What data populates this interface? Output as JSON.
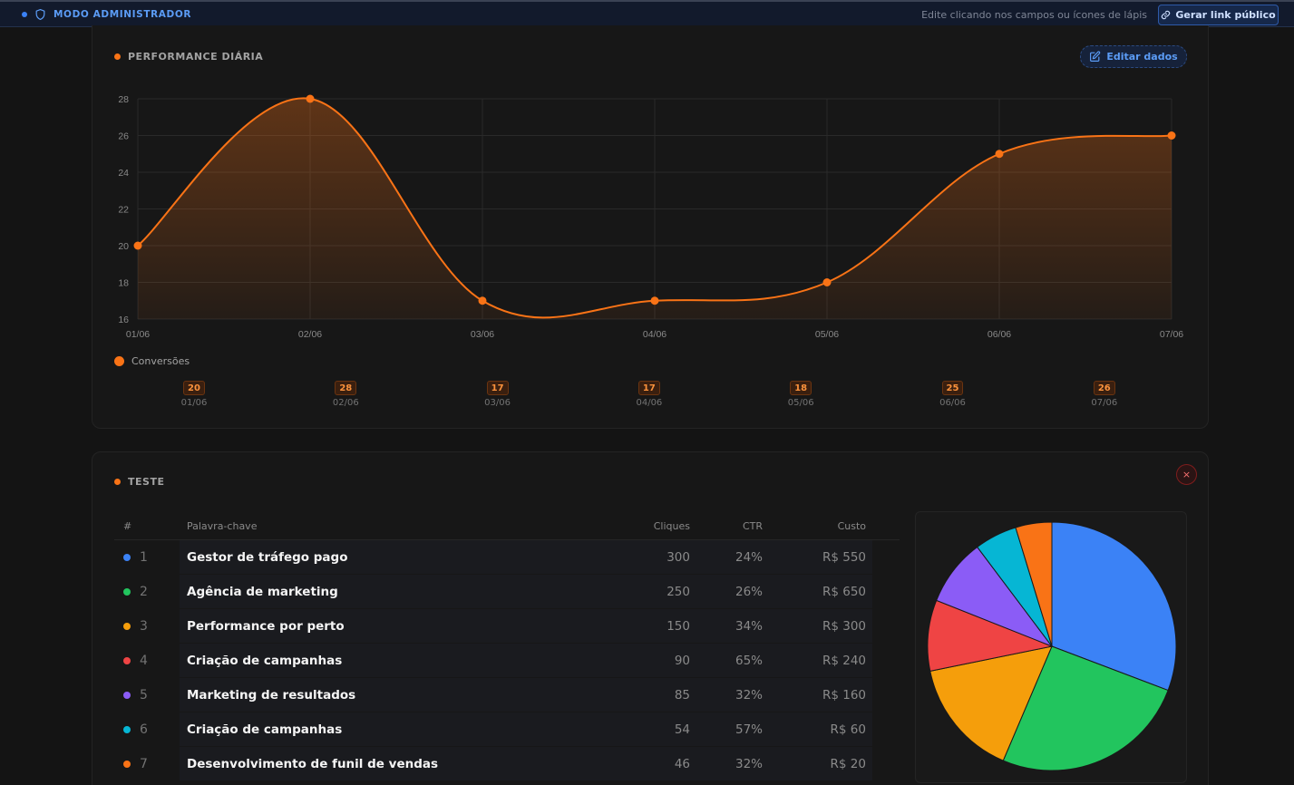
{
  "topbar": {
    "mode_label": "MODO ADMINISTRADOR",
    "hint": "Edite clicando nos campos ou ícones de lápis",
    "link_button": "Gerar link público"
  },
  "performance": {
    "title": "PERFORMANCE DIÁRIA",
    "edit_button": "Editar dados",
    "legend_label": "Conversões",
    "values": [
      {
        "value": "20",
        "date": "01/06"
      },
      {
        "value": "28",
        "date": "02/06"
      },
      {
        "value": "17",
        "date": "03/06"
      },
      {
        "value": "17",
        "date": "04/06"
      },
      {
        "value": "18",
        "date": "05/06"
      },
      {
        "value": "25",
        "date": "06/06"
      },
      {
        "value": "26",
        "date": "07/06"
      }
    ]
  },
  "chart_data": [
    {
      "type": "area",
      "categories": [
        "01/06",
        "02/06",
        "03/06",
        "04/06",
        "05/06",
        "06/06",
        "07/06"
      ],
      "series": [
        {
          "name": "Conversões",
          "values": [
            20,
            28,
            17,
            17,
            18,
            25,
            26
          ],
          "color": "#f97316"
        }
      ],
      "y_ticks": [
        "16",
        "18",
        "20",
        "22",
        "24",
        "26",
        "28"
      ],
      "ylim": [
        16,
        28
      ],
      "grid": true,
      "legend": "bottom-left"
    },
    {
      "type": "pie",
      "categories": [
        "Gestor de tráfego pago",
        "Agência de marketing",
        "Performance por perto",
        "Criação de campanhas",
        "Marketing de resultados",
        "Criação de campanhas",
        "Desenvolvimento de funil de vendas"
      ],
      "values": [
        300,
        250,
        150,
        90,
        85,
        54,
        46
      ],
      "colors": [
        "#3b82f6",
        "#22c55e",
        "#f59e0b",
        "#ef4444",
        "#8b5cf6",
        "#06b6d4",
        "#f97316"
      ]
    }
  ],
  "keywords": {
    "title": "TESTE",
    "close": "×",
    "headers": {
      "num": "#",
      "keyword": "Palavra-chave",
      "clicks": "Cliques",
      "ctr": "CTR",
      "cost": "Custo"
    },
    "rows": [
      {
        "n": "1",
        "keyword": "Gestor de tráfego pago",
        "clicks": "300",
        "ctr": "24%",
        "cost": "R$ 550",
        "color": "#3b82f6"
      },
      {
        "n": "2",
        "keyword": "Agência de marketing",
        "clicks": "250",
        "ctr": "26%",
        "cost": "R$ 650",
        "color": "#22c55e"
      },
      {
        "n": "3",
        "keyword": "Performance por perto",
        "clicks": "150",
        "ctr": "34%",
        "cost": "R$ 300",
        "color": "#f59e0b"
      },
      {
        "n": "4",
        "keyword": "Criação de campanhas",
        "clicks": "90",
        "ctr": "65%",
        "cost": "R$ 240",
        "color": "#ef4444"
      },
      {
        "n": "5",
        "keyword": "Marketing de resultados",
        "clicks": "85",
        "ctr": "32%",
        "cost": "R$ 160",
        "color": "#8b5cf6"
      },
      {
        "n": "6",
        "keyword": "Criação de campanhas",
        "clicks": "54",
        "ctr": "57%",
        "cost": "R$ 60",
        "color": "#06b6d4"
      },
      {
        "n": "7",
        "keyword": "Desenvolvimento de funil de vendas",
        "clicks": "46",
        "ctr": "32%",
        "cost": "R$ 20",
        "color": "#f97316"
      }
    ]
  }
}
